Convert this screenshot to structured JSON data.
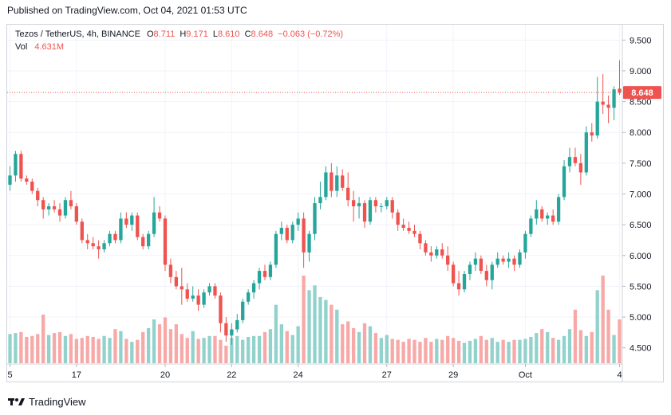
{
  "header": {
    "published": "Published on TradingView.com, Oct 04, 2021 01:53 UTC"
  },
  "legend": {
    "symbol": "Tezos / TetherUS, 4h, BINANCE",
    "open_label": "O",
    "open": "8.711",
    "high_label": "H",
    "high": "9.171",
    "low_label": "L",
    "low": "8.610",
    "close_label": "C",
    "close": "8.648",
    "change": "−0.063 (−0.72%)",
    "vol_label": "Vol",
    "vol": "4.631M"
  },
  "footer": {
    "brand": "TradingView",
    "logo_icon": "tradingview-logo-icon"
  },
  "colors": {
    "up": "#26a69a",
    "down": "#ef5350",
    "up_vol": "#92d2cc",
    "down_vol": "#f7a9a7",
    "grid": "#f0f3fa",
    "text": "#131722"
  },
  "chart_data": {
    "type": "candlestick",
    "price_axis": {
      "min": 4.25,
      "max": 9.75,
      "ticks": [
        "9.500",
        "9.000",
        "8.500",
        "8.000",
        "7.500",
        "7.000",
        "6.500",
        "6.000",
        "5.500",
        "5.000",
        "4.500"
      ]
    },
    "time_axis": {
      "labels": [
        "5",
        "17",
        "20",
        "22",
        "24",
        "27",
        "29",
        "Oct",
        "4"
      ]
    },
    "last_price": "8.648",
    "candles": [
      {
        "o": 7.15,
        "h": 7.45,
        "l": 7.05,
        "c": 7.3
      },
      {
        "o": 7.3,
        "h": 7.7,
        "l": 7.2,
        "c": 7.65
      },
      {
        "o": 7.65,
        "h": 7.7,
        "l": 7.2,
        "c": 7.25
      },
      {
        "o": 7.25,
        "h": 7.3,
        "l": 7.15,
        "c": 7.2
      },
      {
        "o": 7.2,
        "h": 7.25,
        "l": 7.0,
        "c": 7.05
      },
      {
        "o": 7.05,
        "h": 7.1,
        "l": 6.8,
        "c": 6.9
      },
      {
        "o": 6.9,
        "h": 6.95,
        "l": 6.6,
        "c": 6.75
      },
      {
        "o": 6.75,
        "h": 6.85,
        "l": 6.65,
        "c": 6.8
      },
      {
        "o": 6.8,
        "h": 6.9,
        "l": 6.7,
        "c": 6.75
      },
      {
        "o": 6.75,
        "h": 6.85,
        "l": 6.55,
        "c": 6.65
      },
      {
        "o": 6.65,
        "h": 6.95,
        "l": 6.6,
        "c": 6.9
      },
      {
        "o": 6.9,
        "h": 7.05,
        "l": 6.75,
        "c": 6.8
      },
      {
        "o": 6.8,
        "h": 6.85,
        "l": 6.5,
        "c": 6.55
      },
      {
        "o": 6.55,
        "h": 6.6,
        "l": 6.2,
        "c": 6.25
      },
      {
        "o": 6.25,
        "h": 6.35,
        "l": 6.1,
        "c": 6.2
      },
      {
        "o": 6.2,
        "h": 6.3,
        "l": 6.1,
        "c": 6.15
      },
      {
        "o": 6.15,
        "h": 6.25,
        "l": 5.95,
        "c": 6.1
      },
      {
        "o": 6.1,
        "h": 6.25,
        "l": 6.05,
        "c": 6.2
      },
      {
        "o": 6.2,
        "h": 6.4,
        "l": 6.15,
        "c": 6.35
      },
      {
        "o": 6.35,
        "h": 6.4,
        "l": 6.2,
        "c": 6.25
      },
      {
        "o": 6.25,
        "h": 6.7,
        "l": 6.2,
        "c": 6.6
      },
      {
        "o": 6.6,
        "h": 6.7,
        "l": 6.45,
        "c": 6.5
      },
      {
        "o": 6.5,
        "h": 6.7,
        "l": 6.4,
        "c": 6.65
      },
      {
        "o": 6.65,
        "h": 6.7,
        "l": 6.25,
        "c": 6.3
      },
      {
        "o": 6.3,
        "h": 6.35,
        "l": 6.1,
        "c": 6.15
      },
      {
        "o": 6.15,
        "h": 6.4,
        "l": 6.1,
        "c": 6.35
      },
      {
        "o": 6.35,
        "h": 6.95,
        "l": 6.3,
        "c": 6.7
      },
      {
        "o": 6.7,
        "h": 6.8,
        "l": 6.55,
        "c": 6.6
      },
      {
        "o": 6.6,
        "h": 6.65,
        "l": 5.75,
        "c": 5.85
      },
      {
        "o": 5.85,
        "h": 5.95,
        "l": 5.55,
        "c": 5.65
      },
      {
        "o": 5.65,
        "h": 5.75,
        "l": 5.45,
        "c": 5.5
      },
      {
        "o": 5.5,
        "h": 5.8,
        "l": 5.2,
        "c": 5.45
      },
      {
        "o": 5.45,
        "h": 5.55,
        "l": 5.25,
        "c": 5.3
      },
      {
        "o": 5.3,
        "h": 5.5,
        "l": 5.25,
        "c": 5.35
      },
      {
        "o": 5.35,
        "h": 5.45,
        "l": 5.1,
        "c": 5.2
      },
      {
        "o": 5.2,
        "h": 5.45,
        "l": 5.15,
        "c": 5.4
      },
      {
        "o": 5.4,
        "h": 5.55,
        "l": 5.35,
        "c": 5.5
      },
      {
        "o": 5.5,
        "h": 5.55,
        "l": 5.3,
        "c": 5.35
      },
      {
        "o": 5.35,
        "h": 5.4,
        "l": 4.75,
        "c": 4.9
      },
      {
        "o": 4.9,
        "h": 5.0,
        "l": 4.6,
        "c": 4.7
      },
      {
        "o": 4.7,
        "h": 4.9,
        "l": 4.55,
        "c": 4.8
      },
      {
        "o": 4.8,
        "h": 5.05,
        "l": 4.75,
        "c": 4.95
      },
      {
        "o": 4.95,
        "h": 5.3,
        "l": 4.9,
        "c": 5.25
      },
      {
        "o": 5.25,
        "h": 5.45,
        "l": 5.2,
        "c": 5.4
      },
      {
        "o": 5.4,
        "h": 5.6,
        "l": 5.3,
        "c": 5.55
      },
      {
        "o": 5.55,
        "h": 5.8,
        "l": 5.45,
        "c": 5.75
      },
      {
        "o": 5.75,
        "h": 5.85,
        "l": 5.6,
        "c": 5.65
      },
      {
        "o": 5.65,
        "h": 5.9,
        "l": 5.6,
        "c": 5.85
      },
      {
        "o": 5.85,
        "h": 6.4,
        "l": 5.8,
        "c": 6.35
      },
      {
        "o": 6.35,
        "h": 6.55,
        "l": 6.25,
        "c": 6.45
      },
      {
        "o": 6.45,
        "h": 6.5,
        "l": 6.2,
        "c": 6.25
      },
      {
        "o": 6.25,
        "h": 6.55,
        "l": 6.2,
        "c": 6.5
      },
      {
        "o": 6.5,
        "h": 6.7,
        "l": 6.4,
        "c": 6.6
      },
      {
        "o": 6.6,
        "h": 6.7,
        "l": 5.8,
        "c": 6.05
      },
      {
        "o": 6.05,
        "h": 6.4,
        "l": 5.9,
        "c": 6.35
      },
      {
        "o": 6.35,
        "h": 6.95,
        "l": 6.25,
        "c": 6.85
      },
      {
        "o": 6.85,
        "h": 7.2,
        "l": 6.75,
        "c": 6.95
      },
      {
        "o": 6.95,
        "h": 7.45,
        "l": 6.9,
        "c": 7.35
      },
      {
        "o": 7.35,
        "h": 7.5,
        "l": 6.95,
        "c": 7.05
      },
      {
        "o": 7.05,
        "h": 7.45,
        "l": 6.95,
        "c": 7.3
      },
      {
        "o": 7.3,
        "h": 7.4,
        "l": 7.05,
        "c": 7.1
      },
      {
        "o": 7.1,
        "h": 7.35,
        "l": 6.8,
        "c": 6.9
      },
      {
        "o": 6.9,
        "h": 7.05,
        "l": 6.55,
        "c": 6.8
      },
      {
        "o": 6.8,
        "h": 6.95,
        "l": 6.6,
        "c": 6.85
      },
      {
        "o": 6.85,
        "h": 6.9,
        "l": 6.45,
        "c": 6.55
      },
      {
        "o": 6.55,
        "h": 6.95,
        "l": 6.5,
        "c": 6.9
      },
      {
        "o": 6.9,
        "h": 6.95,
        "l": 6.7,
        "c": 6.8
      },
      {
        "o": 6.8,
        "h": 6.85,
        "l": 6.7,
        "c": 6.8
      },
      {
        "o": 6.8,
        "h": 6.95,
        "l": 6.75,
        "c": 6.9
      },
      {
        "o": 6.9,
        "h": 6.95,
        "l": 6.6,
        "c": 6.7
      },
      {
        "o": 6.7,
        "h": 6.75,
        "l": 6.4,
        "c": 6.5
      },
      {
        "o": 6.5,
        "h": 6.6,
        "l": 6.4,
        "c": 6.45
      },
      {
        "o": 6.45,
        "h": 6.55,
        "l": 6.35,
        "c": 6.4
      },
      {
        "o": 6.4,
        "h": 6.5,
        "l": 6.3,
        "c": 6.35
      },
      {
        "o": 6.35,
        "h": 6.4,
        "l": 6.1,
        "c": 6.2
      },
      {
        "o": 6.2,
        "h": 6.25,
        "l": 6.0,
        "c": 6.05
      },
      {
        "o": 6.05,
        "h": 6.15,
        "l": 5.9,
        "c": 6.0
      },
      {
        "o": 6.0,
        "h": 6.15,
        "l": 5.95,
        "c": 6.1
      },
      {
        "o": 6.1,
        "h": 6.2,
        "l": 5.95,
        "c": 6.0
      },
      {
        "o": 6.0,
        "h": 6.15,
        "l": 5.75,
        "c": 5.85
      },
      {
        "o": 5.85,
        "h": 5.9,
        "l": 5.5,
        "c": 5.55
      },
      {
        "o": 5.55,
        "h": 5.75,
        "l": 5.35,
        "c": 5.45
      },
      {
        "o": 5.45,
        "h": 5.75,
        "l": 5.4,
        "c": 5.7
      },
      {
        "o": 5.7,
        "h": 5.9,
        "l": 5.6,
        "c": 5.85
      },
      {
        "o": 5.85,
        "h": 6.05,
        "l": 5.75,
        "c": 5.95
      },
      {
        "o": 5.95,
        "h": 6.0,
        "l": 5.7,
        "c": 5.75
      },
      {
        "o": 5.75,
        "h": 5.85,
        "l": 5.5,
        "c": 5.6
      },
      {
        "o": 5.6,
        "h": 5.9,
        "l": 5.45,
        "c": 5.85
      },
      {
        "o": 5.85,
        "h": 6.05,
        "l": 5.8,
        "c": 5.95
      },
      {
        "o": 5.95,
        "h": 6.0,
        "l": 5.85,
        "c": 5.9
      },
      {
        "o": 5.9,
        "h": 6.05,
        "l": 5.8,
        "c": 5.95
      },
      {
        "o": 5.95,
        "h": 6.0,
        "l": 5.75,
        "c": 5.85
      },
      {
        "o": 5.85,
        "h": 6.1,
        "l": 5.8,
        "c": 6.05
      },
      {
        "o": 6.05,
        "h": 6.4,
        "l": 5.95,
        "c": 6.35
      },
      {
        "o": 6.35,
        "h": 6.65,
        "l": 6.3,
        "c": 6.6
      },
      {
        "o": 6.6,
        "h": 6.9,
        "l": 6.5,
        "c": 6.75
      },
      {
        "o": 6.75,
        "h": 6.8,
        "l": 6.55,
        "c": 6.6
      },
      {
        "o": 6.6,
        "h": 6.7,
        "l": 6.5,
        "c": 6.65
      },
      {
        "o": 6.65,
        "h": 6.75,
        "l": 6.5,
        "c": 6.55
      },
      {
        "o": 6.55,
        "h": 7.0,
        "l": 6.5,
        "c": 6.95
      },
      {
        "o": 6.95,
        "h": 7.55,
        "l": 6.9,
        "c": 7.45
      },
      {
        "o": 7.45,
        "h": 7.75,
        "l": 7.35,
        "c": 7.6
      },
      {
        "o": 7.6,
        "h": 7.75,
        "l": 7.45,
        "c": 7.5
      },
      {
        "o": 7.5,
        "h": 7.65,
        "l": 7.15,
        "c": 7.35
      },
      {
        "o": 7.35,
        "h": 8.1,
        "l": 7.3,
        "c": 8.0
      },
      {
        "o": 8.0,
        "h": 8.15,
        "l": 7.85,
        "c": 7.95
      },
      {
        "o": 7.95,
        "h": 8.9,
        "l": 7.9,
        "c": 8.5
      },
      {
        "o": 8.5,
        "h": 8.95,
        "l": 8.3,
        "c": 8.45
      },
      {
        "o": 8.45,
        "h": 8.6,
        "l": 8.15,
        "c": 8.4
      },
      {
        "o": 8.4,
        "h": 8.75,
        "l": 8.2,
        "c": 8.7
      },
      {
        "o": 8.711,
        "h": 9.171,
        "l": 8.61,
        "c": 8.648
      }
    ],
    "volumes": [
      0.3,
      0.31,
      0.32,
      0.27,
      0.28,
      0.3,
      0.5,
      0.29,
      0.31,
      0.32,
      0.28,
      0.3,
      0.25,
      0.26,
      0.28,
      0.27,
      0.25,
      0.28,
      0.26,
      0.35,
      0.33,
      0.25,
      0.22,
      0.24,
      0.32,
      0.36,
      0.45,
      0.4,
      0.47,
      0.35,
      0.4,
      0.3,
      0.26,
      0.33,
      0.25,
      0.26,
      0.28,
      0.28,
      0.24,
      0.18,
      0.26,
      0.28,
      0.24,
      0.27,
      0.28,
      0.28,
      0.32,
      0.35,
      0.6,
      0.4,
      0.33,
      0.29,
      0.38,
      0.9,
      0.75,
      0.8,
      0.68,
      0.65,
      0.6,
      0.55,
      0.4,
      0.43,
      0.36,
      0.32,
      0.41,
      0.38,
      0.31,
      0.26,
      0.29,
      0.25,
      0.24,
      0.22,
      0.25,
      0.24,
      0.22,
      0.26,
      0.22,
      0.25,
      0.24,
      0.28,
      0.26,
      0.23,
      0.21,
      0.23,
      0.25,
      0.28,
      0.24,
      0.26,
      0.22,
      0.24,
      0.22,
      0.24,
      0.24,
      0.25,
      0.27,
      0.31,
      0.35,
      0.32,
      0.26,
      0.24,
      0.28,
      0.35,
      0.55,
      0.34,
      0.28,
      0.32,
      0.75,
      0.9,
      0.55,
      0.29,
      0.45
    ]
  }
}
